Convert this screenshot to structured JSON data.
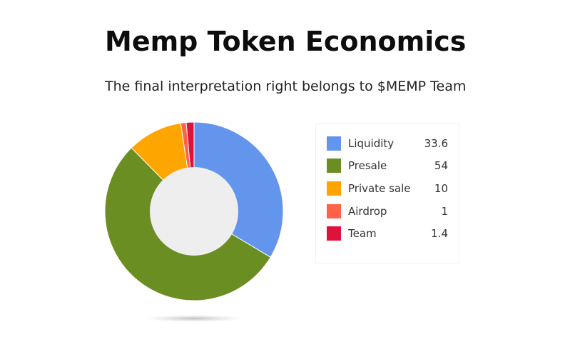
{
  "chart_data": {
    "type": "pie",
    "title": "Memp Token Economics",
    "subtitle": "The final interpretation right belongs to $MEMP Team",
    "legend_position": "right",
    "donut": true,
    "series": [
      {
        "name": "Liquidity",
        "value": 33.6,
        "value_label": "33.6",
        "color": "#6495ED"
      },
      {
        "name": "Presale",
        "value": 54,
        "value_label": "54",
        "color": "#6B8E23"
      },
      {
        "name": "Private sale",
        "value": 10,
        "value_label": "10",
        "color": "#FFA500"
      },
      {
        "name": "Airdrop",
        "value": 1,
        "value_label": "1",
        "color": "#FF6347"
      },
      {
        "name": "Team",
        "value": 1.4,
        "value_label": "1.4",
        "color": "#DC143C"
      }
    ],
    "hole_color": "#EEEEEE"
  }
}
